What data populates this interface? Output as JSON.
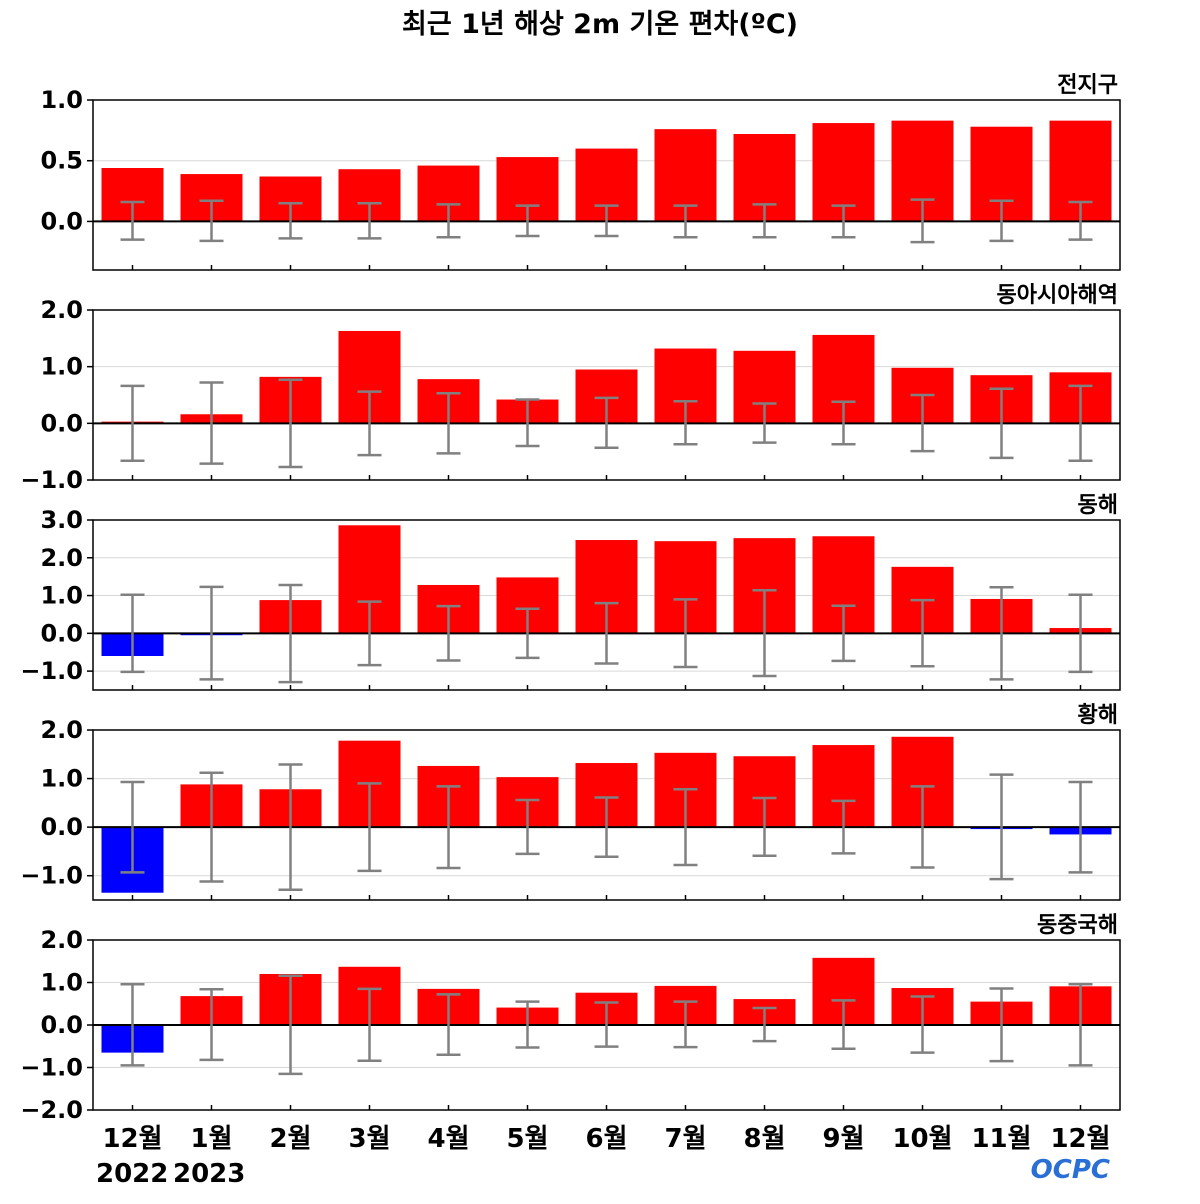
{
  "title": "최근 1년 해상 2m 기온 편차(ºC)",
  "logo_text": "OCPC",
  "colors": {
    "positive": "#ff0000",
    "negative": "#0000ff",
    "error_bar": "#808080",
    "grid": "#d9d9d9",
    "zero": "#000000",
    "logo": "#2a6fd6"
  },
  "chart_data": [
    {
      "type": "bar",
      "title": "전지구",
      "categories": [
        "12월",
        "1월",
        "2월",
        "3월",
        "4월",
        "5월",
        "6월",
        "7월",
        "8월",
        "9월",
        "10월",
        "11월",
        "12월"
      ],
      "values": [
        0.44,
        0.39,
        0.37,
        0.43,
        0.46,
        0.53,
        0.6,
        0.76,
        0.72,
        0.81,
        0.83,
        0.78,
        0.83
      ],
      "error_upper": [
        0.16,
        0.17,
        0.15,
        0.15,
        0.14,
        0.13,
        0.13,
        0.13,
        0.14,
        0.13,
        0.18,
        0.17,
        0.16
      ],
      "error_lower": [
        -0.15,
        -0.16,
        -0.14,
        -0.14,
        -0.13,
        -0.12,
        -0.12,
        -0.13,
        -0.13,
        -0.13,
        -0.17,
        -0.16,
        -0.15
      ],
      "ylim": [
        -0.4,
        1.0
      ],
      "yticks": [
        "1.0",
        "0.5",
        "0.0"
      ],
      "ytick_values": [
        1.0,
        0.5,
        0.0
      ],
      "grid": true
    },
    {
      "type": "bar",
      "title": "동아시아해역",
      "categories": [
        "12월",
        "1월",
        "2월",
        "3월",
        "4월",
        "5월",
        "6월",
        "7월",
        "8월",
        "9월",
        "10월",
        "11월",
        "12월"
      ],
      "values": [
        0.03,
        0.16,
        0.82,
        1.63,
        0.78,
        0.42,
        0.95,
        1.32,
        1.28,
        1.56,
        0.98,
        0.85,
        0.9
      ],
      "error_upper": [
        0.66,
        0.72,
        0.77,
        0.56,
        0.53,
        0.42,
        0.45,
        0.39,
        0.35,
        0.38,
        0.5,
        0.61,
        0.66
      ],
      "error_lower": [
        -0.66,
        -0.71,
        -0.77,
        -0.56,
        -0.53,
        -0.4,
        -0.43,
        -0.37,
        -0.34,
        -0.37,
        -0.49,
        -0.61,
        -0.66
      ],
      "ylim": [
        -1.0,
        2.0
      ],
      "yticks": [
        "2.0",
        "1.0",
        "0.0",
        "−1.0"
      ],
      "ytick_values": [
        2.0,
        1.0,
        0.0,
        -1.0
      ],
      "grid": true
    },
    {
      "type": "bar",
      "title": "동해",
      "categories": [
        "12월",
        "1월",
        "2월",
        "3월",
        "4월",
        "5월",
        "6월",
        "7월",
        "8월",
        "9월",
        "10월",
        "11월",
        "12월"
      ],
      "values": [
        -0.6,
        -0.05,
        0.88,
        2.86,
        1.28,
        1.48,
        2.47,
        2.44,
        2.52,
        2.57,
        1.76,
        0.91,
        0.14
      ],
      "error_upper": [
        1.02,
        1.23,
        1.28,
        0.84,
        0.72,
        0.65,
        0.8,
        0.9,
        1.14,
        0.73,
        0.88,
        1.22,
        1.02
      ],
      "error_lower": [
        -1.02,
        -1.22,
        -1.29,
        -0.84,
        -0.72,
        -0.65,
        -0.8,
        -0.89,
        -1.13,
        -0.73,
        -0.87,
        -1.22,
        -1.02
      ],
      "ylim": [
        -1.5,
        3.0
      ],
      "yticks": [
        "3.0",
        "2.0",
        "1.0",
        "0.0",
        "−1.0"
      ],
      "ytick_values": [
        3.0,
        2.0,
        1.0,
        0.0,
        -1.0
      ],
      "grid": true
    },
    {
      "type": "bar",
      "title": "황해",
      "categories": [
        "12월",
        "1월",
        "2월",
        "3월",
        "4월",
        "5월",
        "6월",
        "7월",
        "8월",
        "9월",
        "10월",
        "11월",
        "12월"
      ],
      "values": [
        -1.35,
        0.88,
        0.78,
        1.78,
        1.26,
        1.03,
        1.32,
        1.53,
        1.46,
        1.69,
        1.86,
        -0.04,
        -0.15
      ],
      "error_upper": [
        0.93,
        1.12,
        1.29,
        0.9,
        0.84,
        0.56,
        0.61,
        0.78,
        0.6,
        0.54,
        0.84,
        1.08,
        0.93
      ],
      "error_lower": [
        -0.93,
        -1.12,
        -1.29,
        -0.9,
        -0.84,
        -0.55,
        -0.61,
        -0.78,
        -0.59,
        -0.54,
        -0.83,
        -1.07,
        -0.93
      ],
      "ylim": [
        -1.5,
        2.0
      ],
      "yticks": [
        "2.0",
        "1.0",
        "0.0",
        "−1.0"
      ],
      "ytick_values": [
        2.0,
        1.0,
        0.0,
        -1.0
      ],
      "grid": true
    },
    {
      "type": "bar",
      "title": "동중국해",
      "categories": [
        "12월",
        "1월",
        "2월",
        "3월",
        "4월",
        "5월",
        "6월",
        "7월",
        "8월",
        "9월",
        "10월",
        "11월",
        "12월"
      ],
      "values": [
        -0.65,
        0.68,
        1.2,
        1.37,
        0.85,
        0.41,
        0.76,
        0.92,
        0.61,
        1.58,
        0.87,
        0.55,
        0.91
      ],
      "error_upper": [
        0.96,
        0.84,
        1.16,
        0.85,
        0.72,
        0.55,
        0.53,
        0.55,
        0.4,
        0.58,
        0.67,
        0.86,
        0.96
      ],
      "error_lower": [
        -0.95,
        -0.82,
        -1.15,
        -0.84,
        -0.7,
        -0.53,
        -0.51,
        -0.52,
        -0.38,
        -0.56,
        -0.65,
        -0.85,
        -0.95
      ],
      "ylim": [
        -2.0,
        2.0
      ],
      "yticks": [
        "2.0",
        "1.0",
        "0.0",
        "−1.0",
        "−2.0"
      ],
      "ytick_values": [
        2.0,
        1.0,
        0.0,
        -1.0,
        -2.0
      ],
      "grid": true
    }
  ],
  "x_axis": {
    "labels": [
      "12월",
      "1월",
      "2월",
      "3월",
      "4월",
      "5월",
      "6월",
      "7월",
      "8월",
      "9월",
      "10월",
      "11월",
      "12월"
    ],
    "years": [
      "2022",
      "2023"
    ]
  }
}
